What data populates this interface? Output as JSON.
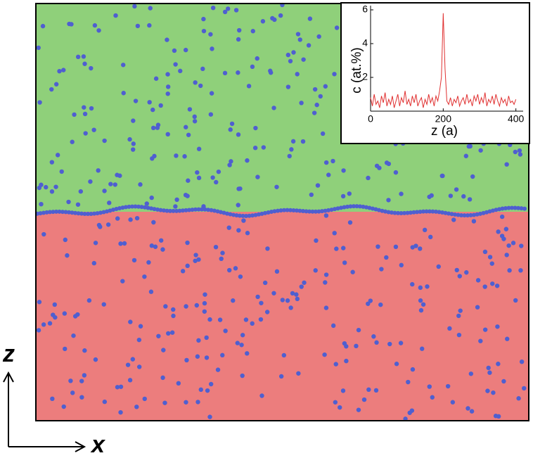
{
  "axes_labels": {
    "vertical": "z",
    "horizontal": "x"
  },
  "chart_data": {
    "type": "line",
    "x_label": "z (a)",
    "y_label": "c (at.%)",
    "x": [
      0,
      5,
      10,
      15,
      20,
      25,
      30,
      35,
      40,
      45,
      50,
      55,
      60,
      65,
      70,
      75,
      80,
      85,
      90,
      95,
      100,
      105,
      110,
      115,
      120,
      125,
      130,
      135,
      140,
      145,
      150,
      155,
      160,
      165,
      170,
      175,
      180,
      185,
      190,
      195,
      200,
      205,
      210,
      215,
      220,
      225,
      230,
      235,
      240,
      245,
      250,
      255,
      260,
      265,
      270,
      275,
      280,
      285,
      290,
      295,
      300,
      305,
      310,
      315,
      320,
      325,
      330,
      335,
      340,
      345,
      350,
      355,
      360,
      365,
      370,
      375,
      380,
      385,
      390,
      395,
      400
    ],
    "series": [
      {
        "color": "#e03030",
        "values": [
          0.8,
          0.3,
          1.0,
          0.4,
          0.6,
          0.2,
          0.9,
          0.5,
          1.1,
          0.3,
          0.7,
          0.4,
          0.9,
          0.2,
          0.6,
          1.0,
          0.3,
          0.8,
          0.5,
          1.2,
          0.4,
          0.7,
          0.3,
          0.9,
          0.5,
          1.0,
          0.3,
          0.6,
          0.8,
          0.2,
          0.7,
          0.4,
          1.0,
          0.5,
          0.8,
          0.3,
          0.9,
          0.6,
          1.2,
          2.0,
          5.8,
          2.5,
          0.6,
          0.4,
          0.8,
          0.3,
          0.7,
          0.5,
          0.9,
          0.3,
          0.6,
          0.8,
          0.4,
          1.0,
          0.5,
          0.7,
          0.3,
          0.9,
          0.6,
          1.0,
          0.4,
          0.8,
          0.5,
          1.1,
          0.3,
          0.7,
          0.5,
          0.9,
          0.4,
          1.0,
          0.6,
          0.3,
          0.8,
          0.5,
          0.7,
          0.3,
          0.9,
          0.5,
          0.6,
          0.4,
          0.7
        ]
      }
    ],
    "xlim": [
      0,
      420
    ],
    "ylim": [
      0,
      6
    ],
    "xticks": [
      0,
      200,
      400
    ],
    "yticks": [
      2,
      4,
      6
    ]
  }
}
